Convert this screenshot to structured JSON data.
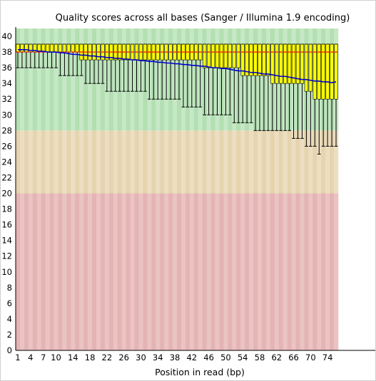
{
  "chart_data": {
    "type": "box",
    "title": "Quality scores across all bases (Sanger / Illumina 1.9 encoding)",
    "xlabel": "Position in read (bp)",
    "ylabel": "",
    "ylim": [
      0,
      41
    ],
    "yticks": [
      0,
      2,
      4,
      6,
      8,
      10,
      12,
      14,
      16,
      18,
      20,
      22,
      24,
      26,
      28,
      30,
      32,
      34,
      36,
      38,
      40
    ],
    "xtick_labels": [
      "1",
      "4",
      "7",
      "10",
      "14",
      "18",
      "22",
      "26",
      "30",
      "34",
      "38",
      "42",
      "46",
      "50",
      "54",
      "58",
      "62",
      "66",
      "70",
      "74"
    ],
    "xtick_positions": [
      1,
      4,
      7,
      10,
      14,
      18,
      22,
      26,
      30,
      34,
      38,
      42,
      46,
      50,
      54,
      58,
      62,
      66,
      70,
      74
    ],
    "x_start": 1,
    "x_end": 76,
    "quality_bands": [
      {
        "from": 28,
        "to": 41,
        "color": "#b3dfb3",
        "alt_color": "#c6e8c6"
      },
      {
        "from": 20,
        "to": 28,
        "color": "#e6d4b0",
        "alt_color": "#ecdfc1"
      },
      {
        "from": 0,
        "to": 20,
        "color": "#e4b4b4",
        "alt_color": "#ebc3c3"
      }
    ],
    "box_color": "#ffff00",
    "median_color": "#ff0000",
    "mean_color": "#0000cc",
    "whisker_color": "#000000",
    "series": [
      {
        "name": "Mean",
        "values": [
          38.3,
          38.3,
          38.3,
          38.2,
          38.2,
          38.1,
          38.1,
          38.0,
          38.0,
          38.0,
          37.9,
          37.9,
          37.8,
          37.7,
          37.7,
          37.6,
          37.6,
          37.5,
          37.5,
          37.4,
          37.4,
          37.3,
          37.3,
          37.2,
          37.2,
          37.1,
          37.1,
          37.0,
          37.0,
          36.9,
          36.9,
          36.8,
          36.8,
          36.7,
          36.7,
          36.6,
          36.6,
          36.5,
          36.5,
          36.4,
          36.4,
          36.3,
          36.3,
          36.2,
          36.2,
          36.1,
          36.0,
          36.0,
          35.9,
          35.9,
          35.8,
          35.7,
          35.6,
          35.6,
          35.5,
          35.4,
          35.4,
          35.3,
          35.2,
          35.2,
          35.1,
          35.0,
          34.9,
          34.9,
          34.8,
          34.7,
          34.6,
          34.5,
          34.5,
          34.4,
          34.3,
          34.3,
          34.2,
          34.2,
          34.1,
          34.2
        ]
      }
    ],
    "upper_quartile": [
      39,
      39,
      39,
      39,
      39,
      39,
      39,
      39,
      39,
      39,
      39,
      39,
      39,
      39,
      39,
      39,
      39,
      39,
      39,
      39,
      39,
      39,
      39,
      39,
      39,
      39,
      39,
      39,
      39,
      39,
      39,
      39,
      39,
      39,
      39,
      39,
      39,
      39,
      39,
      39,
      39,
      39,
      39,
      39,
      39,
      39,
      39,
      39,
      39,
      39,
      39,
      39,
      39,
      39,
      39,
      39,
      39,
      39,
      39,
      39,
      39,
      39,
      39,
      39,
      39,
      39,
      39,
      39,
      39,
      39,
      39,
      39,
      39,
      39,
      39,
      39
    ],
    "median": [
      38,
      38,
      38,
      38,
      38,
      38,
      38,
      38,
      38,
      38,
      38,
      38,
      38,
      38,
      38,
      38,
      38,
      38,
      38,
      38,
      38,
      38,
      38,
      38,
      38,
      38,
      38,
      38,
      38,
      38,
      38,
      38,
      38,
      38,
      38,
      38,
      38,
      38,
      38,
      38,
      38,
      38,
      38,
      38,
      38,
      38,
      38,
      38,
      38,
      38,
      38,
      38,
      38,
      38,
      38,
      38,
      38,
      38,
      38,
      38,
      38,
      38,
      38,
      38,
      38,
      38,
      38,
      38,
      38,
      38,
      38,
      38,
      38,
      38,
      38,
      38
    ],
    "lower_quartile": [
      38,
      38,
      38,
      38,
      38,
      38,
      38,
      38,
      38,
      38,
      38,
      38,
      38,
      38,
      38,
      37,
      37,
      37,
      37,
      37,
      37,
      37,
      37,
      37,
      37,
      37,
      37,
      37,
      37,
      37,
      37,
      37,
      37,
      37,
      37,
      37,
      37,
      37,
      37,
      37,
      37,
      37,
      37,
      37,
      36,
      36,
      36,
      36,
      36,
      36,
      36,
      36,
      36,
      35,
      35,
      35,
      35,
      35,
      35,
      35,
      34,
      34,
      34,
      34,
      34,
      34,
      34,
      34,
      33,
      33,
      32,
      32,
      32,
      32,
      32,
      32
    ],
    "upper_whisker": [
      39,
      39,
      39,
      39,
      39,
      39,
      39,
      39,
      39,
      39,
      39,
      39,
      39,
      39,
      39,
      39,
      39,
      39,
      39,
      39,
      39,
      39,
      39,
      39,
      39,
      39,
      39,
      39,
      39,
      39,
      39,
      39,
      39,
      39,
      39,
      39,
      39,
      39,
      39,
      39,
      39,
      39,
      39,
      39,
      39,
      39,
      39,
      39,
      39,
      39,
      39,
      39,
      39,
      39,
      39,
      39,
      39,
      39,
      39,
      39,
      39,
      39,
      39,
      39,
      39,
      39,
      39,
      39,
      39,
      39,
      39,
      39,
      39,
      39,
      39,
      39
    ],
    "lower_whisker": [
      36,
      36,
      36,
      36,
      36,
      36,
      36,
      36,
      36,
      36,
      35,
      35,
      35,
      35,
      35,
      35,
      34,
      34,
      34,
      34,
      34,
      33,
      33,
      33,
      33,
      33,
      33,
      33,
      33,
      33,
      33,
      32,
      32,
      32,
      32,
      32,
      32,
      32,
      32,
      31,
      31,
      31,
      31,
      31,
      30,
      30,
      30,
      30,
      30,
      30,
      30,
      29,
      29,
      29,
      29,
      29,
      28,
      28,
      28,
      28,
      28,
      28,
      28,
      28,
      28,
      27,
      27,
      27,
      26,
      26,
      26,
      25,
      26,
      26,
      26,
      26
    ]
  }
}
